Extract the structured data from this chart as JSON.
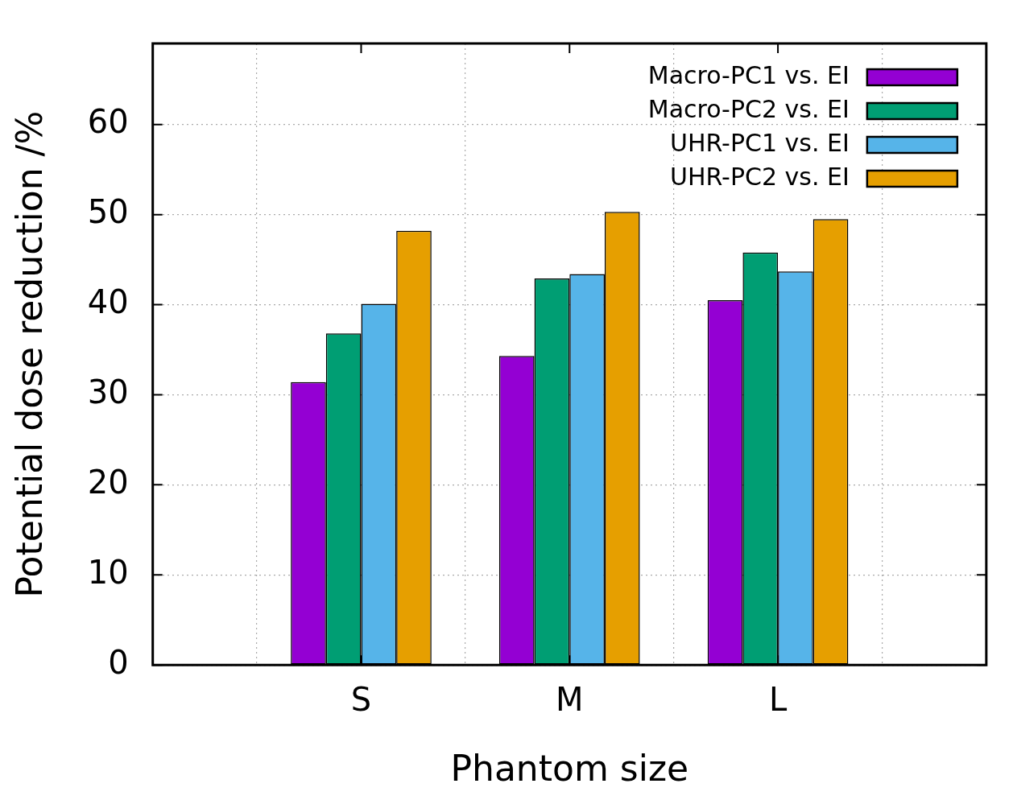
{
  "chart_data": {
    "type": "bar",
    "xlabel": "Phantom size",
    "ylabel": "Potential dose reduction /%",
    "categories": [
      "S",
      "M",
      "L"
    ],
    "series": [
      {
        "name": "Macro-PC1 vs. EI",
        "color": "#9400d3",
        "values": [
          31.4,
          34.3,
          40.5
        ]
      },
      {
        "name": "Macro-PC2 vs. EI",
        "color": "#009e73",
        "values": [
          36.8,
          42.9,
          45.8
        ]
      },
      {
        "name": "UHR-PC1 vs. EI",
        "color": "#56b4e9",
        "values": [
          40.1,
          43.4,
          43.7
        ]
      },
      {
        "name": "UHR-PC2 vs. EI",
        "color": "#e69f00",
        "values": [
          48.2,
          50.3,
          49.5
        ]
      }
    ],
    "ylim": [
      0,
      69
    ],
    "yticks": [
      0,
      10,
      20,
      30,
      40,
      50,
      60
    ],
    "grid": true,
    "legend": "top right"
  }
}
